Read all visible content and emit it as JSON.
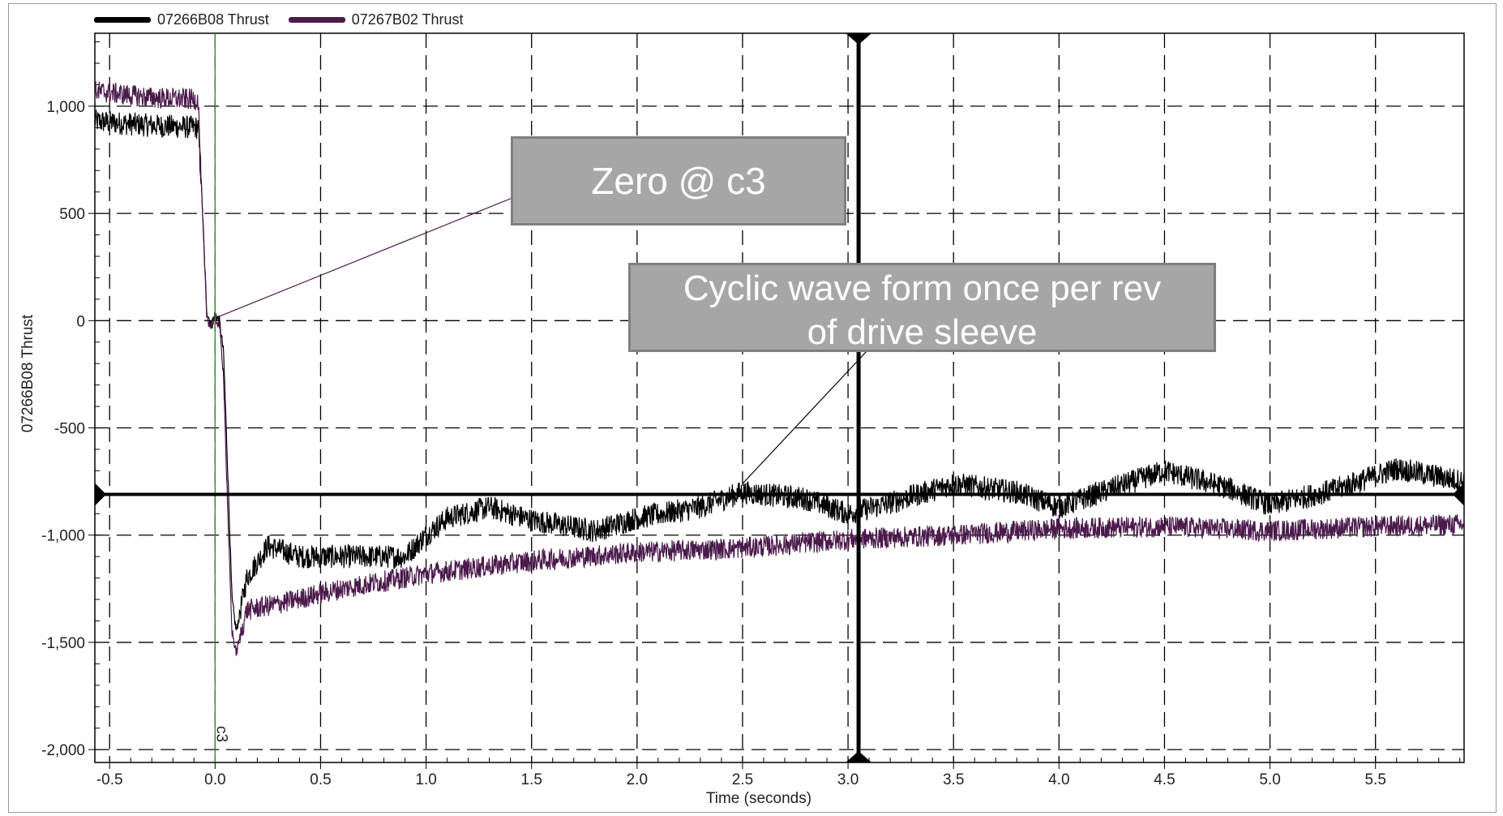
{
  "chart_data": {
    "type": "line",
    "xlabel": "Time  (seconds)",
    "ylabel": "07266B08 Thrust",
    "xlim": [
      -0.57,
      5.92
    ],
    "ylim": [
      -2060,
      1340
    ],
    "x_ticks": [
      -0.5,
      0.0,
      0.5,
      1.0,
      1.5,
      2.0,
      2.5,
      3.0,
      3.5,
      4.0,
      4.5,
      5.0,
      5.5
    ],
    "x_tick_labels": [
      "-0.5",
      "0.0",
      "0.5",
      "1.0",
      "1.5",
      "2.0",
      "2.5",
      "3.0",
      "3.5",
      "4.0",
      "4.5",
      "5.0",
      "5.5"
    ],
    "y_ticks": [
      1000,
      500,
      0,
      -500,
      -1000,
      -1500,
      -2000
    ],
    "y_tick_labels": [
      "1,000",
      "500",
      "0",
      "-500",
      "-1,000",
      "-1,500",
      "-2,000"
    ],
    "grid": true,
    "legend_position": "top-left",
    "series": [
      {
        "name": "07266B08 Thrust",
        "color": "#000000",
        "x": [
          -0.57,
          -0.3,
          -0.08,
          -0.06,
          -0.04,
          -0.02,
          0.0,
          0.02,
          0.04,
          0.06,
          0.08,
          0.1,
          0.15,
          0.25,
          0.4,
          0.6,
          0.9,
          1.0,
          1.1,
          1.3,
          1.5,
          1.8,
          2.0,
          2.3,
          2.5,
          2.8,
          3.0,
          3.2,
          3.5,
          3.8,
          4.0,
          4.2,
          4.5,
          4.8,
          5.0,
          5.3,
          5.6,
          5.92
        ],
        "y": [
          930,
          910,
          900,
          520,
          50,
          -20,
          30,
          0,
          -150,
          -700,
          -1300,
          -1450,
          -1200,
          -1050,
          -1100,
          -1100,
          -1100,
          -1000,
          -920,
          -870,
          -930,
          -980,
          -920,
          -870,
          -800,
          -830,
          -900,
          -850,
          -760,
          -800,
          -870,
          -800,
          -700,
          -780,
          -860,
          -790,
          -690,
          -750
        ]
      },
      {
        "name": "07267B02 Thrust",
        "color": "#4b1a4b",
        "x": [
          -0.57,
          -0.3,
          -0.08,
          -0.06,
          -0.04,
          -0.02,
          0.0,
          0.02,
          0.04,
          0.06,
          0.08,
          0.1,
          0.15,
          0.3,
          0.6,
          1.0,
          1.5,
          2.0,
          2.5,
          3.0,
          3.5,
          4.0,
          4.5,
          5.0,
          5.5,
          5.92
        ],
        "y": [
          1070,
          1040,
          1030,
          500,
          20,
          -30,
          10,
          -20,
          -250,
          -900,
          -1450,
          -1550,
          -1350,
          -1320,
          -1250,
          -1180,
          -1120,
          -1080,
          -1060,
          -1020,
          -1000,
          -970,
          -960,
          -980,
          -960,
          -950
        ]
      }
    ],
    "cursors": {
      "c3_label": "c3",
      "c3_x": 0.0,
      "vertical_cursor_x": 3.05,
      "horizontal_cursor_y": -810
    },
    "annotations": [
      {
        "text": "Zero @ c3",
        "points_to": {
          "x": 0.02,
          "y": 20
        }
      },
      {
        "text": "Cyclic wave form once per rev of drive sleeve",
        "points_to": {
          "x": 2.5,
          "y": -760
        }
      }
    ]
  },
  "legend": {
    "items": [
      {
        "label": "07266B08 Thrust",
        "color": "#000000"
      },
      {
        "label": "07267B02 Thrust",
        "color": "#4b1a4b"
      }
    ]
  },
  "callouts": {
    "first": "Zero @ c3",
    "second_line1": "Cyclic wave form once per rev",
    "second_line2": "of drive sleeve"
  }
}
